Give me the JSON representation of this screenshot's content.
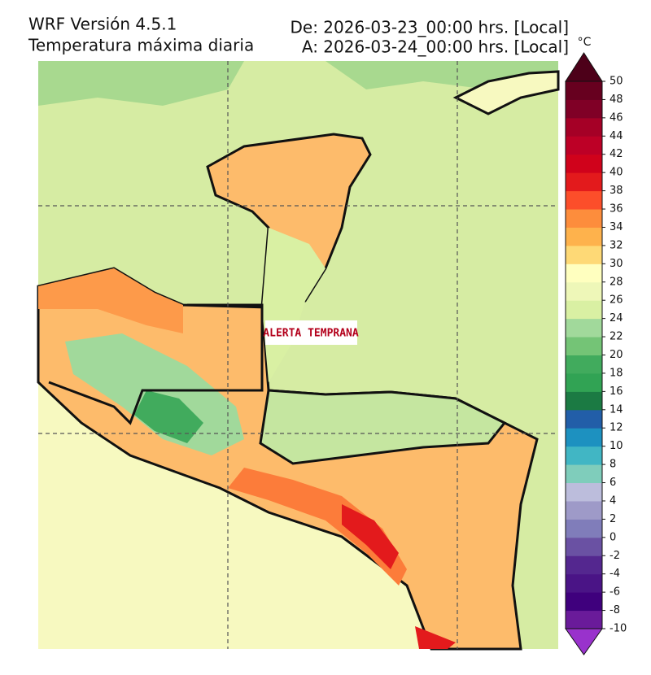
{
  "header": {
    "model": "WRF Versión 4.5.1",
    "variable": "Temperatura máxima diaria",
    "from": "De: 2026-03-23_00:00 hrs. [Local]",
    "to": "A: 2026-03-24_00:00 hrs. [Local]"
  },
  "logo": "ALERTA TEMPRANA",
  "colorbar": {
    "unit": "°C",
    "lim": [
      -10,
      50
    ],
    "ticks": [
      -10,
      -8,
      -6,
      -4,
      -2,
      0,
      2,
      4,
      6,
      8,
      10,
      12,
      14,
      16,
      18,
      20,
      22,
      24,
      26,
      28,
      30,
      32,
      34,
      36,
      38,
      40,
      42,
      44,
      46,
      48,
      50
    ],
    "colors": [
      "#6a1b9a",
      "#3f007d",
      "#4a1486",
      "#54278f",
      "#6a51a3",
      "#807dba",
      "#9e9ac8",
      "#bcbddc",
      "#7fcdbb",
      "#41b6c4",
      "#1d91c0",
      "#225ea8",
      "#1b7a43",
      "#31a354",
      "#41ab5d",
      "#74c476",
      "#a1d99b",
      "#d9f0a3",
      "#eef7b8",
      "#ffffbf",
      "#fed976",
      "#feb24c",
      "#fd8d3c",
      "#fc4e2a",
      "#e31a1c",
      "#d0021b",
      "#bd0026",
      "#a50026",
      "#800026",
      "#67001f"
    ],
    "over_color": "#4d0019",
    "under_color": "#9932cc"
  }
}
